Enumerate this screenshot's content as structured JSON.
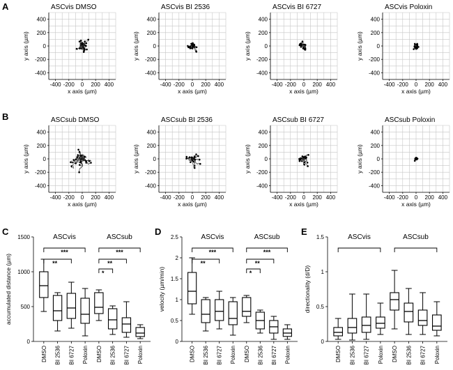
{
  "figure": {
    "panel_letters": [
      "A",
      "B",
      "C",
      "D",
      "E"
    ]
  },
  "chart_data": [
    {
      "panel": "A",
      "type": "scatter",
      "title": "ASCvis DMSO",
      "xlabel": "x axis (µm)",
      "ylabel": "y axis (µm)",
      "xlim": [
        -500,
        500
      ],
      "ylim": [
        -500,
        500
      ],
      "xticks": [
        -400,
        -200,
        0,
        200,
        400
      ],
      "yticks": [
        -400,
        -200,
        0,
        200,
        400
      ],
      "grid": true,
      "spread": 120,
      "n_tracks": 42
    },
    {
      "panel": "A",
      "type": "scatter",
      "title": "ASCvis BI 2536",
      "xlabel": "x axis (µm)",
      "ylabel": "y axis (µm)",
      "xlim": [
        -500,
        500
      ],
      "ylim": [
        -500,
        500
      ],
      "xticks": [
        -400,
        -200,
        0,
        200,
        400
      ],
      "yticks": [
        -400,
        -200,
        0,
        200,
        400
      ],
      "grid": true,
      "spread": 95,
      "n_tracks": 34
    },
    {
      "panel": "A",
      "type": "scatter",
      "title": "ASCvis BI 6727",
      "xlabel": "x axis (µm)",
      "ylabel": "y axis (µm)",
      "xlim": [
        -500,
        500
      ],
      "ylim": [
        -500,
        500
      ],
      "xticks": [
        -400,
        -200,
        0,
        200,
        400
      ],
      "yticks": [
        -400,
        -200,
        0,
        200,
        400
      ],
      "grid": true,
      "spread": 100,
      "n_tracks": 36
    },
    {
      "panel": "A",
      "type": "scatter",
      "title": "ASCvis Poloxin",
      "xlabel": "x axis (µm)",
      "ylabel": "y axis (µm)",
      "xlim": [
        -500,
        500
      ],
      "ylim": [
        -500,
        500
      ],
      "xticks": [
        -400,
        -200,
        0,
        200,
        400
      ],
      "yticks": [
        -400,
        -200,
        0,
        200,
        400
      ],
      "grid": true,
      "spread": 60,
      "n_tracks": 30
    },
    {
      "panel": "B",
      "type": "scatter",
      "title": "ASCsub DMSO",
      "xlabel": "x axis (µm)",
      "ylabel": "y axis (µm)",
      "xlim": [
        -500,
        500
      ],
      "ylim": [
        -500,
        500
      ],
      "xticks": [
        -400,
        -200,
        0,
        200,
        400
      ],
      "yticks": [
        -400,
        -200,
        0,
        200,
        400
      ],
      "grid": true,
      "spread": 290,
      "n_tracks": 24
    },
    {
      "panel": "B",
      "type": "scatter",
      "title": "ASCsub BI 2536",
      "xlabel": "x axis (µm)",
      "ylabel": "y axis (µm)",
      "xlim": [
        -500,
        500
      ],
      "ylim": [
        -500,
        500
      ],
      "xticks": [
        -400,
        -200,
        0,
        200,
        400
      ],
      "yticks": [
        -400,
        -200,
        0,
        200,
        400
      ],
      "grid": true,
      "spread": 190,
      "n_tracks": 22
    },
    {
      "panel": "B",
      "type": "scatter",
      "title": "ASCsub BI 6727",
      "xlabel": "x axis (µm)",
      "ylabel": "y axis (µm)",
      "xlim": [
        -500,
        500
      ],
      "ylim": [
        -500,
        500
      ],
      "xticks": [
        -400,
        -200,
        0,
        200,
        400
      ],
      "yticks": [
        -400,
        -200,
        0,
        200,
        400
      ],
      "grid": true,
      "spread": 150,
      "n_tracks": 22
    },
    {
      "panel": "B",
      "type": "scatter",
      "title": "ASCsub Poloxin",
      "xlabel": "x axis (µm)",
      "ylabel": "y axis (µm)",
      "xlim": [
        -500,
        500
      ],
      "ylim": [
        -500,
        500
      ],
      "xticks": [
        -400,
        -200,
        0,
        200,
        400
      ],
      "yticks": [
        -400,
        -200,
        0,
        200,
        400
      ],
      "grid": true,
      "spread": 40,
      "n_tracks": 20
    },
    {
      "panel": "C",
      "type": "box",
      "ylabel": "accumulated distance (µm)",
      "ylim": [
        0,
        1500
      ],
      "yticks": [
        0,
        500,
        1000,
        1500
      ],
      "categories": [
        "DMSO",
        "BI 2536",
        "BI 6727",
        "Poloxin",
        "DMSO",
        "BI 2536",
        "BI 6727",
        "Poloxin"
      ],
      "groups": [
        {
          "label": "ASCvis",
          "from": 0,
          "to": 3
        },
        {
          "label": "ASCsub",
          "from": 4,
          "to": 7
        }
      ],
      "boxes": [
        {
          "min": 430,
          "q1": 630,
          "median": 800,
          "q3": 1000,
          "max": 1180
        },
        {
          "min": 150,
          "q1": 300,
          "median": 440,
          "q3": 660,
          "max": 700
        },
        {
          "min": 190,
          "q1": 330,
          "median": 480,
          "q3": 690,
          "max": 850
        },
        {
          "min": 80,
          "q1": 260,
          "median": 390,
          "q3": 620,
          "max": 760
        },
        {
          "min": 300,
          "q1": 400,
          "median": 490,
          "q3": 700,
          "max": 740
        },
        {
          "min": 100,
          "q1": 180,
          "median": 310,
          "q3": 470,
          "max": 510
        },
        {
          "min": 60,
          "q1": 130,
          "median": 250,
          "q3": 340,
          "max": 570
        },
        {
          "min": 40,
          "q1": 70,
          "median": 120,
          "q3": 200,
          "max": 240
        }
      ],
      "significance": [
        {
          "from": 0,
          "to": 3,
          "label": "***"
        },
        {
          "from": 0,
          "to": 2,
          "label": "**"
        },
        {
          "from": 4,
          "to": 7,
          "label": "***"
        },
        {
          "from": 4,
          "to": 6,
          "label": "**"
        },
        {
          "from": 4,
          "to": 5,
          "label": "*"
        }
      ]
    },
    {
      "panel": "D",
      "type": "box",
      "ylabel": "velocity (µm/min)",
      "ylim": [
        0,
        2.5
      ],
      "yticks": [
        0,
        0.5,
        1,
        1.5,
        2,
        2.5
      ],
      "categories": [
        "DMSO",
        "BI 2536",
        "BI 6727",
        "Poloxin",
        "DMSO",
        "BI 2536",
        "BI 6727",
        "Poloxin"
      ],
      "groups": [
        {
          "label": "ASCvis",
          "from": 0,
          "to": 3
        },
        {
          "label": "ASCsub",
          "from": 4,
          "to": 7
        }
      ],
      "boxes": [
        {
          "min": 0.65,
          "q1": 0.9,
          "median": 1.2,
          "q3": 1.65,
          "max": 2.0
        },
        {
          "min": 0.25,
          "q1": 0.45,
          "median": 0.65,
          "q3": 1.0,
          "max": 1.05
        },
        {
          "min": 0.3,
          "q1": 0.5,
          "median": 0.72,
          "q3": 1.0,
          "max": 1.2
        },
        {
          "min": 0.15,
          "q1": 0.4,
          "median": 0.55,
          "q3": 0.95,
          "max": 1.05
        },
        {
          "min": 0.45,
          "q1": 0.6,
          "median": 0.72,
          "q3": 1.05,
          "max": 1.1
        },
        {
          "min": 0.2,
          "q1": 0.3,
          "median": 0.5,
          "q3": 0.7,
          "max": 0.75
        },
        {
          "min": 0.05,
          "q1": 0.2,
          "median": 0.35,
          "q3": 0.5,
          "max": 0.6
        },
        {
          "min": 0.05,
          "q1": 0.12,
          "median": 0.2,
          "q3": 0.3,
          "max": 0.4
        }
      ],
      "significance": [
        {
          "from": 0,
          "to": 3,
          "label": "***"
        },
        {
          "from": 0,
          "to": 2,
          "label": "**"
        },
        {
          "from": 4,
          "to": 7,
          "label": "***"
        },
        {
          "from": 4,
          "to": 6,
          "label": "**"
        },
        {
          "from": 4,
          "to": 5,
          "label": "*"
        }
      ]
    },
    {
      "panel": "E",
      "type": "box",
      "ylabel": "directionality (d/D)",
      "ylim": [
        0,
        1.5
      ],
      "yticks": [
        0,
        0.5,
        1,
        1.5
      ],
      "categories": [
        "DMSO",
        "BI 2536",
        "BI 6727",
        "Poloxin",
        "DMSO",
        "BI 2536",
        "BI 6727",
        "Poloxin"
      ],
      "groups": [
        {
          "label": "ASCvis",
          "from": 0,
          "to": 3
        },
        {
          "label": "ASCsub",
          "from": 4,
          "to": 7
        }
      ],
      "boxes": [
        {
          "min": 0.03,
          "q1": 0.08,
          "median": 0.13,
          "q3": 0.2,
          "max": 0.33
        },
        {
          "min": 0.02,
          "q1": 0.12,
          "median": 0.2,
          "q3": 0.33,
          "max": 0.68
        },
        {
          "min": 0.03,
          "q1": 0.13,
          "median": 0.23,
          "q3": 0.35,
          "max": 0.68
        },
        {
          "min": 0.1,
          "q1": 0.19,
          "median": 0.26,
          "q3": 0.35,
          "max": 0.55
        },
        {
          "min": 0.18,
          "q1": 0.45,
          "median": 0.6,
          "q3": 0.7,
          "max": 1.02
        },
        {
          "min": 0.1,
          "q1": 0.28,
          "median": 0.43,
          "q3": 0.55,
          "max": 0.76
        },
        {
          "min": 0.1,
          "q1": 0.23,
          "median": 0.3,
          "q3": 0.45,
          "max": 0.7
        },
        {
          "min": 0.08,
          "q1": 0.16,
          "median": 0.22,
          "q3": 0.38,
          "max": 0.57
        }
      ],
      "significance": [
        {
          "from": 0,
          "to": 3,
          "label": ""
        },
        {
          "from": 4,
          "to": 7,
          "label": ""
        }
      ]
    }
  ]
}
